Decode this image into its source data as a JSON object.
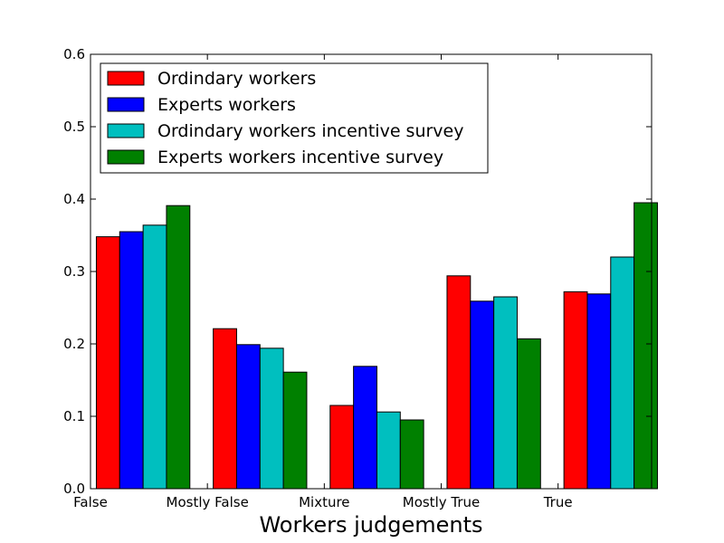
{
  "chart_data": {
    "type": "bar",
    "title": "",
    "xlabel": "Workers judgements",
    "ylabel": "",
    "categories": [
      "False",
      "Mostly False",
      "Mixture",
      "Mostly True",
      "True"
    ],
    "ylim": [
      0.0,
      0.6
    ],
    "yticks": [
      "0.0",
      "0.1",
      "0.2",
      "0.3",
      "0.4",
      "0.5",
      "0.6"
    ],
    "grid": false,
    "legend_position": "top-left",
    "series": [
      {
        "name": "Ordindary workers",
        "color": "#ff0000",
        "values": [
          0.348,
          0.221,
          0.115,
          0.294,
          0.272
        ]
      },
      {
        "name": "Experts workers",
        "color": "#0000ff",
        "values": [
          0.355,
          0.199,
          0.169,
          0.259,
          0.269
        ]
      },
      {
        "name": "Ordindary workers incentive survey",
        "color": "#00bfbf",
        "values": [
          0.364,
          0.194,
          0.106,
          0.265,
          0.32
        ]
      },
      {
        "name": "Experts workers incentive survey",
        "color": "#008000",
        "values": [
          0.391,
          0.161,
          0.095,
          0.207,
          0.395
        ]
      }
    ]
  }
}
